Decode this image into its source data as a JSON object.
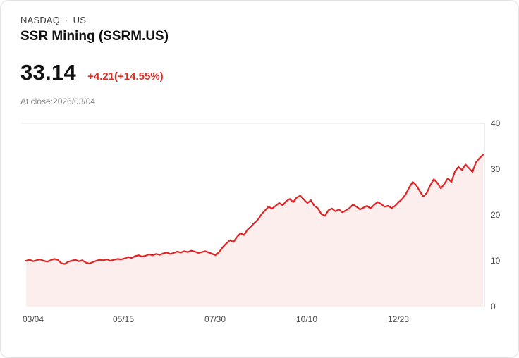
{
  "header": {
    "exchange": "NASDAQ",
    "separator": "·",
    "region": "US",
    "title": "SSR Mining (SSRM.US)",
    "price": "33.14",
    "change": "+4.21(+14.55%)",
    "at_close": "At close:2026/03/04"
  },
  "colors": {
    "line": "#e02424",
    "fill": "#fdeeee",
    "change_text": "#d93025",
    "grid": "#e6e6e6",
    "axis_line": "#d9d9d9",
    "axis_label": "#4a4a4a"
  },
  "chart_data": {
    "type": "area",
    "title": "SSR Mining (SSRM.US) one-year price history",
    "xlabel": "",
    "ylabel": "",
    "x_ticks": [
      "03/04",
      "05/15",
      "07/30",
      "10/10",
      "12/23"
    ],
    "y_ticks": [
      "40",
      "30",
      "20",
      "10",
      "0"
    ],
    "ylim": [
      0,
      40
    ],
    "legend": "none",
    "grid": "top gridline and right axis only",
    "last_close": 33.14,
    "values": [
      10.0,
      10.2,
      9.9,
      10.1,
      10.3,
      10.0,
      9.8,
      10.1,
      10.4,
      10.2,
      9.5,
      9.3,
      9.8,
      10.0,
      10.2,
      9.9,
      10.1,
      9.6,
      9.4,
      9.7,
      10.0,
      10.2,
      10.1,
      10.3,
      10.0,
      10.2,
      10.4,
      10.3,
      10.5,
      10.8,
      10.6,
      11.0,
      11.2,
      10.9,
      11.1,
      11.4,
      11.2,
      11.5,
      11.3,
      11.6,
      11.8,
      11.5,
      11.7,
      12.0,
      11.8,
      12.1,
      11.9,
      12.2,
      12.0,
      11.7,
      11.9,
      12.1,
      11.8,
      11.5,
      11.2,
      12.0,
      13.0,
      13.8,
      14.5,
      14.1,
      15.2,
      16.0,
      15.6,
      16.8,
      17.5,
      18.3,
      19.0,
      20.2,
      21.0,
      21.8,
      21.4,
      22.0,
      22.6,
      22.1,
      23.0,
      23.5,
      22.8,
      23.8,
      24.2,
      23.4,
      22.6,
      23.2,
      22.0,
      21.5,
      20.2,
      19.8,
      21.0,
      21.4,
      20.8,
      21.2,
      20.6,
      21.0,
      21.5,
      22.3,
      21.8,
      21.2,
      21.6,
      22.0,
      21.4,
      22.2,
      22.8,
      22.4,
      21.8,
      22.0,
      21.5,
      22.0,
      22.8,
      23.5,
      24.5,
      26.0,
      27.2,
      26.5,
      25.2,
      24.0,
      24.8,
      26.5,
      27.8,
      27.0,
      25.8,
      26.8,
      28.0,
      27.2,
      29.5,
      30.5,
      29.8,
      31.0,
      30.2,
      29.4,
      31.5,
      32.4,
      33.14
    ]
  }
}
